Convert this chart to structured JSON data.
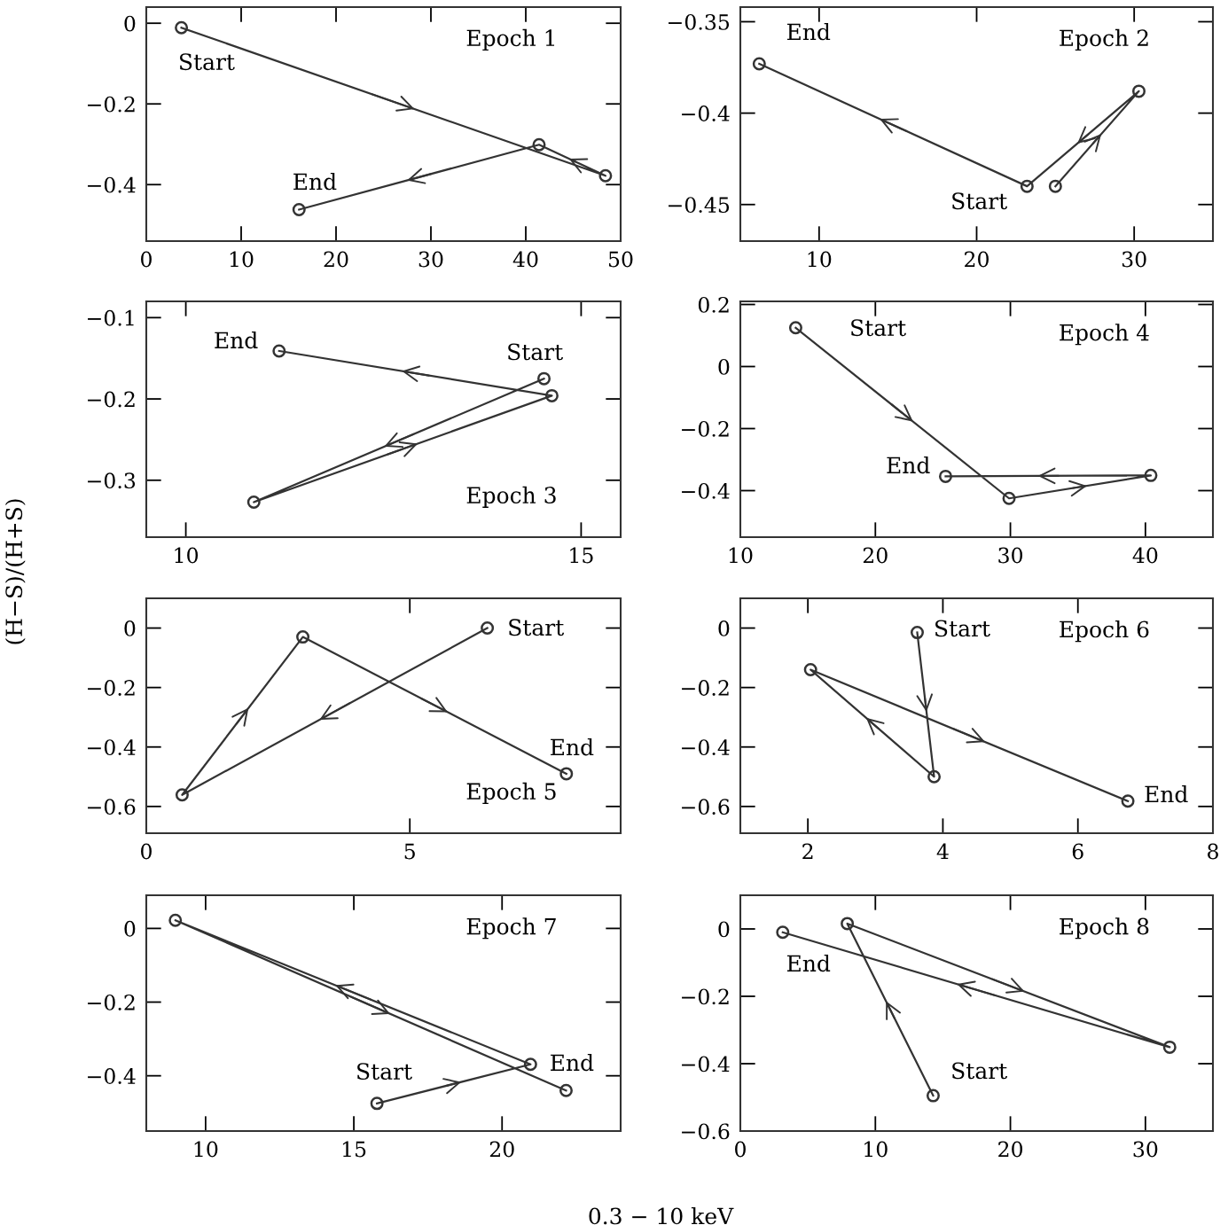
{
  "chart_data": [
    {
      "type": "line",
      "title": "Epoch 1",
      "x": [
        3.7,
        48.4,
        41.4,
        16.1
      ],
      "values": [
        -0.011,
        -0.378,
        -0.301,
        -0.462
      ],
      "color": "#333333",
      "marker": "circle",
      "xlim": [
        0,
        50
      ],
      "ylim": [
        -0.54,
        0.04
      ],
      "xticks": [
        0,
        10,
        20,
        30,
        40,
        50
      ],
      "yticks": [
        0,
        {
          "value": -0.2,
          "label": "−0.2"
        },
        {
          "value": -0.4,
          "label": "−0.4"
        }
      ],
      "annotations": [
        "Start",
        "End"
      ]
    },
    {
      "type": "line",
      "title": "Epoch 2",
      "x": [
        25.0,
        30.3,
        23.2,
        6.2
      ],
      "values": [
        -0.44,
        -0.388,
        -0.44,
        -0.373
      ],
      "color": "#333333",
      "marker": "circle",
      "xlim": [
        5,
        35
      ],
      "ylim": [
        -0.47,
        -0.342
      ],
      "xticks": [
        10,
        20,
        30
      ],
      "yticks": [
        {
          "value": -0.35,
          "label": "−0.35"
        },
        {
          "value": -0.4,
          "label": "−0.4"
        },
        {
          "value": -0.45,
          "label": "−0.45"
        }
      ],
      "annotations": [
        "End",
        "Start"
      ]
    },
    {
      "type": "line",
      "title": "Epoch 3",
      "x": [
        14.53,
        10.86,
        14.63,
        11.18
      ],
      "values": [
        -0.175,
        -0.327,
        -0.196,
        -0.141
      ],
      "color": "#333333",
      "marker": "circle",
      "xlim": [
        9.5,
        15.5
      ],
      "ylim": [
        -0.37,
        -0.08
      ],
      "xticks": [
        10,
        15
      ],
      "yticks": [
        {
          "value": -0.1,
          "label": "−0.1"
        },
        {
          "value": -0.2,
          "label": "−0.2"
        },
        {
          "value": -0.3,
          "label": "−0.3"
        }
      ],
      "annotations": [
        "End",
        "Start"
      ]
    },
    {
      "type": "line",
      "title": "Epoch 4",
      "x": [
        14.1,
        29.9,
        40.4,
        25.2
      ],
      "values": [
        0.125,
        -0.425,
        -0.351,
        -0.354
      ],
      "color": "#333333",
      "marker": "circle",
      "xlim": [
        10,
        45
      ],
      "ylim": [
        -0.55,
        0.21
      ],
      "xticks": [
        10,
        20,
        30,
        40
      ],
      "yticks": [
        0.2,
        0,
        {
          "value": -0.2,
          "label": "−0.2"
        },
        {
          "value": -0.4,
          "label": "−0.4"
        }
      ],
      "annotations": [
        "Start",
        "End"
      ]
    },
    {
      "type": "line",
      "title": "Epoch 5",
      "ylabel": "(H−S)/(H+S)",
      "x": [
        6.47,
        0.68,
        2.97,
        7.97
      ],
      "values": [
        0.0,
        -0.561,
        -0.03,
        -0.49
      ],
      "color": "#333333",
      "marker": "circle",
      "xlim": [
        0,
        9
      ],
      "ylim": [
        -0.69,
        0.1
      ],
      "xticks": [
        0,
        5
      ],
      "yticks": [
        0,
        {
          "value": -0.2,
          "label": "−0.2"
        },
        {
          "value": -0.4,
          "label": "−0.4"
        },
        {
          "value": -0.6,
          "label": "−0.6"
        }
      ],
      "annotations": [
        "Start",
        "End"
      ]
    },
    {
      "type": "line",
      "title": "Epoch 6",
      "x": [
        3.62,
        3.87,
        2.04,
        6.74
      ],
      "values": [
        -0.015,
        -0.5,
        -0.14,
        -0.582
      ],
      "color": "#333333",
      "marker": "circle",
      "xlim": [
        1,
        8
      ],
      "ylim": [
        -0.69,
        0.1
      ],
      "xticks": [
        2,
        4,
        6,
        8
      ],
      "yticks": [
        0,
        {
          "value": -0.2,
          "label": "−0.2"
        },
        {
          "value": -0.4,
          "label": "−0.4"
        },
        {
          "value": -0.6,
          "label": "−0.6"
        }
      ],
      "annotations": [
        "Start",
        "End"
      ]
    },
    {
      "type": "line",
      "title": "Epoch 7",
      "xlabel": "0.3 − 10 keV",
      "x": [
        15.78,
        20.96,
        8.98,
        22.16
      ],
      "values": [
        -0.475,
        -0.369,
        0.022,
        -0.44
      ],
      "color": "#333333",
      "marker": "circle",
      "xlim": [
        8,
        24
      ],
      "ylim": [
        -0.55,
        0.09
      ],
      "xticks": [
        10,
        15,
        20
      ],
      "yticks": [
        0,
        {
          "value": -0.2,
          "label": "−0.2"
        },
        {
          "value": -0.4,
          "label": "−0.4"
        }
      ],
      "annotations": [
        "Start",
        "End"
      ]
    },
    {
      "type": "line",
      "title": "Epoch 8",
      "x": [
        14.28,
        7.92,
        31.8,
        3.14
      ],
      "values": [
        -0.495,
        0.016,
        -0.351,
        -0.01
      ],
      "color": "#333333",
      "marker": "circle",
      "xlim": [
        0,
        35
      ],
      "ylim": [
        -0.6,
        0.1
      ],
      "xticks": [
        0,
        10,
        20,
        30
      ],
      "yticks": [
        0,
        {
          "value": -0.2,
          "label": "−0.2"
        },
        {
          "value": -0.4,
          "label": "−0.4"
        },
        {
          "value": -0.6,
          "label": "−0.6"
        }
      ],
      "annotations": [
        "End",
        "Start"
      ]
    }
  ]
}
